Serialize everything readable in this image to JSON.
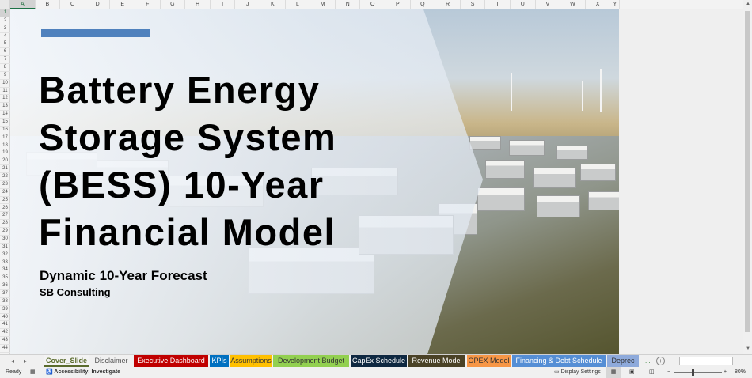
{
  "grid": {
    "columns": [
      "A",
      "B",
      "C",
      "D",
      "E",
      "F",
      "G",
      "H",
      "I",
      "J",
      "K",
      "L",
      "M",
      "N",
      "O",
      "P",
      "Q",
      "R",
      "S",
      "T",
      "U",
      "V",
      "W",
      "X",
      "Y"
    ],
    "rows": [
      "1",
      "2",
      "3",
      "4",
      "5",
      "6",
      "7",
      "8",
      "9",
      "10",
      "11",
      "12",
      "13",
      "14",
      "15",
      "16",
      "17",
      "18",
      "19",
      "20",
      "21",
      "22",
      "23",
      "24",
      "25",
      "26",
      "27",
      "28",
      "29",
      "30",
      "31",
      "32",
      "33",
      "34",
      "35",
      "36",
      "37",
      "38",
      "39",
      "40",
      "41",
      "42",
      "43",
      "44"
    ],
    "selected_cell": "A1"
  },
  "cover": {
    "title": "Battery Energy\nStorage System\n(BESS) 10-Year\nFinancial Model",
    "subtitle": "Dynamic 10-Year Forecast",
    "company": "SB Consulting",
    "accent_color": "#4f81bd"
  },
  "tabs": [
    {
      "label": "Cover_Slide",
      "bg": "#f3f3f3",
      "fg": "#5a6b2c",
      "active": true
    },
    {
      "label": "Disclaimer",
      "bg": "#f0f0f0",
      "fg": "#555"
    },
    {
      "label": "Executive Dashboard",
      "bg": "#c00000",
      "fg": "#fff"
    },
    {
      "label": "KPIs",
      "bg": "#0070c0",
      "fg": "#fff"
    },
    {
      "label": "Assumptions",
      "bg": "#ffc000",
      "fg": "#333"
    },
    {
      "label": "Development Budget",
      "bg": "#92d050",
      "fg": "#333"
    },
    {
      "label": "CapEx Schedule",
      "bg": "#0e2841",
      "fg": "#fff"
    },
    {
      "label": "Revenue Model",
      "bg": "#4a4226",
      "fg": "#fff"
    },
    {
      "label": "OPEX Model",
      "bg": "#f79646",
      "fg": "#333"
    },
    {
      "label": "Financing & Debt Schedule",
      "bg": "#558ed5",
      "fg": "#fff"
    },
    {
      "label": "Deprec",
      "bg": "#8eaadb",
      "fg": "#333"
    }
  ],
  "tabbar": {
    "more": "...",
    "add": "+"
  },
  "status": {
    "ready": "Ready",
    "accessibility": "Accessibility: Investigate",
    "display_settings": "Display Settings",
    "zoom": "80%"
  }
}
